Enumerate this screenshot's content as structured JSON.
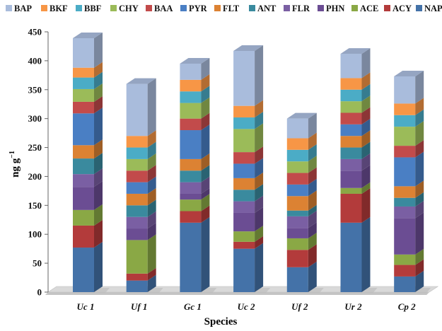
{
  "chart_data": {
    "type": "bar",
    "stacked": true,
    "three_d": true,
    "categories": [
      "Uc 1",
      "Uf 1",
      "Gc 1",
      "Uc 2",
      "Uf 2",
      "Ur 2",
      "Cp 2"
    ],
    "xlabel": "Species",
    "ylabel": "ng g",
    "ylabel_superscript": "−1",
    "ylim": [
      0,
      450
    ],
    "yticks": [
      0,
      50,
      100,
      150,
      200,
      250,
      300,
      350,
      400,
      450
    ],
    "grid": false,
    "legend_position": "top",
    "legend_order": [
      "BAP",
      "BKF",
      "BBF",
      "CHY",
      "BAA",
      "PYR",
      "FLT",
      "ANT",
      "FLR",
      "PHN",
      "ACE",
      "ACY",
      "NAP"
    ],
    "series": [
      {
        "name": "NAP",
        "color": "#4472a8",
        "values": [
          77,
          20,
          120,
          75,
          43,
          120,
          27
        ]
      },
      {
        "name": "ACY",
        "color": "#b33b3b",
        "values": [
          38,
          12,
          20,
          12,
          30,
          50,
          20
        ]
      },
      {
        "name": "ACE",
        "color": "#8aa845",
        "values": [
          27,
          58,
          20,
          18,
          20,
          10,
          18
        ]
      },
      {
        "name": "PHN",
        "color": "#6b4d93",
        "values": [
          40,
          20,
          10,
          32,
          18,
          30,
          63
        ]
      },
      {
        "name": "FLR",
        "color": "#7a5fa3",
        "values": [
          22,
          20,
          20,
          20,
          20,
          20,
          20
        ]
      },
      {
        "name": "ANT",
        "color": "#3a8a9e",
        "values": [
          27,
          20,
          20,
          20,
          10,
          20,
          15
        ]
      },
      {
        "name": "FLT",
        "color": "#dc8233",
        "values": [
          23,
          20,
          20,
          20,
          25,
          20,
          20
        ]
      },
      {
        "name": "PYR",
        "color": "#4a7fc4",
        "values": [
          55,
          20,
          50,
          25,
          20,
          20,
          50
        ]
      },
      {
        "name": "BAA",
        "color": "#c24b4b",
        "values": [
          20,
          20,
          20,
          20,
          20,
          20,
          20
        ]
      },
      {
        "name": "CHY",
        "color": "#9bbb59",
        "values": [
          22,
          20,
          27,
          40,
          20,
          20,
          33
        ]
      },
      {
        "name": "BBF",
        "color": "#4bacc6",
        "values": [
          20,
          20,
          20,
          20,
          20,
          20,
          20
        ]
      },
      {
        "name": "BKF",
        "color": "#f79646",
        "values": [
          17,
          20,
          20,
          20,
          20,
          20,
          20
        ]
      },
      {
        "name": "BAP",
        "color": "#a9bcdc",
        "values": [
          51,
          90,
          28,
          95,
          34,
          42,
          47
        ]
      }
    ]
  }
}
